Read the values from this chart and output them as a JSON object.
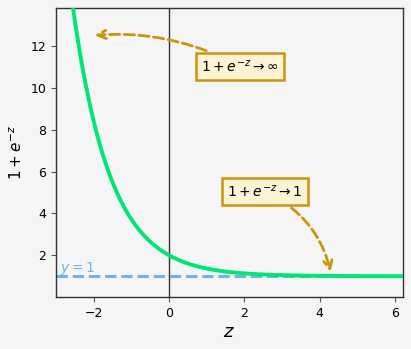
{
  "xlim": [
    -3,
    6.2
  ],
  "ylim": [
    0,
    13.8
  ],
  "xlabel": "$z$",
  "ylabel": "$1 + e^{-z}$",
  "curve_color": "#00e676",
  "asymptote_color": "#6eb5e0",
  "asymptote_y": 1,
  "asymptote_label": "$y=1$",
  "arrow_color": "#c8960c",
  "box_facecolor": "#fff3d6",
  "box_edgecolor": "#c8960c",
  "annotation_inf": "$1 + e^{-z} \\rightarrow \\infty$",
  "annotation_one": "$1 + e^{-z} \\rightarrow 1$",
  "xticks": [
    -2,
    0,
    2,
    4,
    6
  ],
  "yticks": [
    2,
    4,
    6,
    8,
    10,
    12
  ],
  "background_color": "#f5f5f5",
  "axes_facecolor": "#f5f5f5",
  "spine_color": "#333333",
  "tick_label_size": 9,
  "xlabel_fontsize": 13,
  "ylabel_fontsize": 11
}
